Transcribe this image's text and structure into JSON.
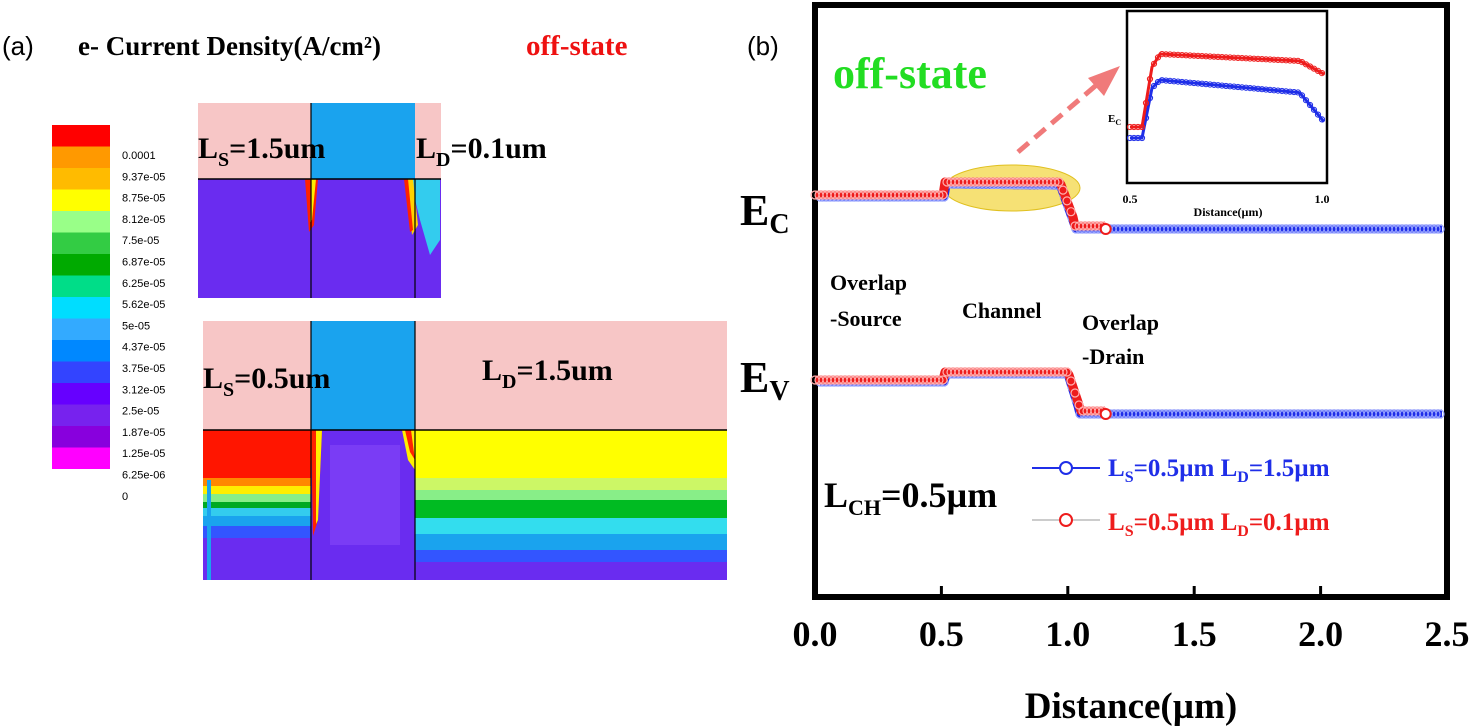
{
  "panel_a": {
    "label": "(a)",
    "title": "e- Current Density(A/cm²)",
    "title_state": "off-state",
    "legend_values": [
      "0.0001",
      "9.37e-05",
      "8.75e-05",
      "8.12e-05",
      "7.5e-05",
      "6.87e-05",
      "6.25e-05",
      "5.62e-05",
      "5e-05",
      "4.37e-05",
      "3.75e-05",
      "3.12e-05",
      "2.5e-05",
      "1.87e-05",
      "1.25e-05",
      "6.25e-06",
      "0"
    ],
    "legend_colors": [
      "#ff0000",
      "#ff9900",
      "#ffbb00",
      "#ffff00",
      "#99ff88",
      "#33cc44",
      "#00aa00",
      "#00dd88",
      "#00ddff",
      "#33aaff",
      "#0088ff",
      "#3344ff",
      "#6600ff",
      "#7722ee",
      "#8800dd",
      "#ff00ff",
      "#ffffff"
    ],
    "top_device": {
      "ls_label": "L",
      "ls_sub": "S",
      "ls_value": "=1.5um",
      "ld_label": "L",
      "ld_sub": "D",
      "ld_value": "=0.1um"
    },
    "bottom_device": {
      "ls_label": "L",
      "ls_sub": "S",
      "ls_value": "=0.5um",
      "ld_label": "L",
      "ld_sub": "D",
      "ld_value": "=1.5um"
    },
    "colors": {
      "pink": "#f7c6c6",
      "blue": "#1aa3ee",
      "purple": "#6a2cf0",
      "red": "#ff1500"
    }
  },
  "panel_b": {
    "label": "(b)",
    "state_label": "off-state",
    "ec_label": "E",
    "ec_sub": "C",
    "ev_label": "E",
    "ev_sub": "V",
    "region_source": [
      "Overlap",
      "-Source"
    ],
    "region_channel": "Channel",
    "region_drain": [
      "Overlap",
      "-Drain"
    ],
    "lch_label": "L",
    "lch_sub": "CH",
    "lch_value": "=0.5µm",
    "inset": {
      "ylabel": "E",
      "ylabel_sub": "C",
      "xlabel": "Distance(µm)",
      "xticks": [
        "0.5",
        "1.0"
      ]
    },
    "colors": {
      "green": "#22dd22",
      "blue": "#1f2ee8",
      "red": "#ee1c1c",
      "arrow": "#f07a7a",
      "highlight": "#f2d43a"
    },
    "chart_data": {
      "type": "line",
      "xlabel": "Distance(µm)",
      "xlim": [
        0.0,
        2.5
      ],
      "xticks": [
        "0.0",
        "0.5",
        "1.0",
        "1.5",
        "2.0",
        "2.5"
      ],
      "series": [
        {
          "name": "LS=0.5µm LD=1.5µm",
          "legend_parts": [
            "L",
            "S",
            "=0.5µm L",
            "D",
            "=1.5µm"
          ],
          "color": "#1f2ee8"
        },
        {
          "name": "LS=0.5µm LD=0.1µm",
          "legend_parts": [
            "L",
            "S",
            "=0.5µm L",
            "D",
            "=0.1µm"
          ],
          "color": "#ee1c1c"
        }
      ]
    }
  }
}
